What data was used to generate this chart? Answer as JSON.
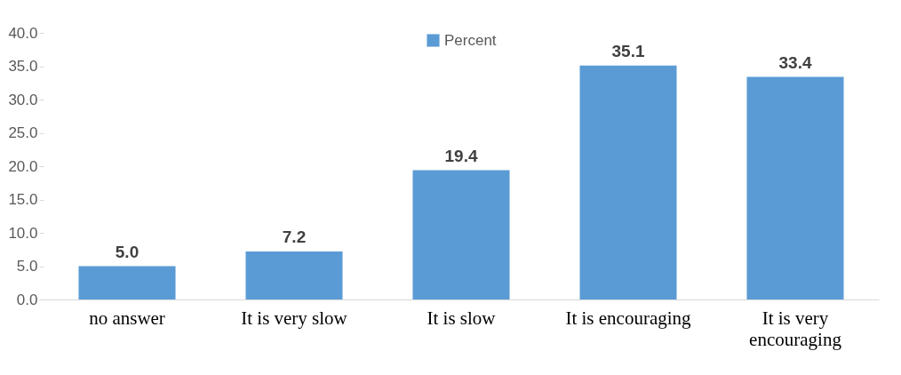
{
  "chart_data": {
    "type": "bar",
    "categories": [
      "no answer",
      "It is very slow",
      "It is slow",
      "It is encouraging",
      "It is very encouraging"
    ],
    "series": [
      {
        "name": "Percent",
        "color": "#5b9bd5",
        "values": [
          5.0,
          7.2,
          19.4,
          35.1,
          33.4
        ],
        "value_labels": [
          "5.0",
          "7.2",
          "19.4",
          "35.1",
          "33.4"
        ]
      }
    ],
    "ylim": [
      0,
      40
    ],
    "yticks": [
      {
        "value": 0,
        "label": "0.0"
      },
      {
        "value": 5,
        "label": "5.0"
      },
      {
        "value": 10,
        "label": "10.0"
      },
      {
        "value": 15,
        "label": "15.0"
      },
      {
        "value": 20,
        "label": "20.0"
      },
      {
        "value": 25,
        "label": "25.0"
      },
      {
        "value": 30,
        "label": "30.0"
      },
      {
        "value": 35,
        "label": "35.0"
      },
      {
        "value": 40,
        "label": "40.0"
      }
    ],
    "legend": "top",
    "grid": false
  }
}
